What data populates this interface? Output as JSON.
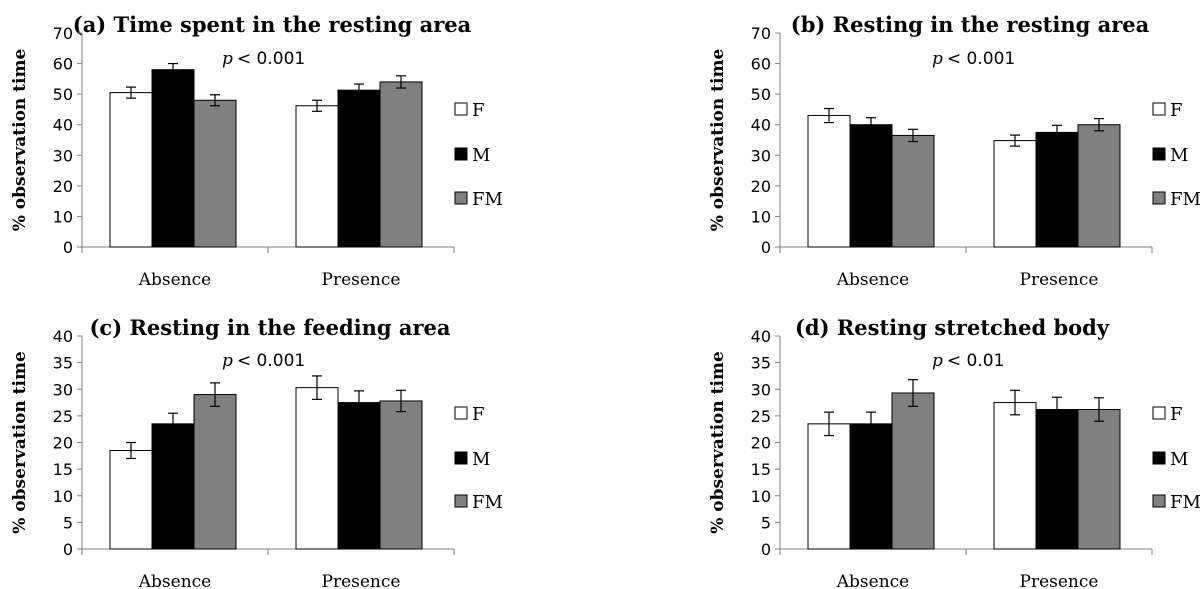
{
  "chart_data": [
    {
      "type": "bar",
      "title": "(a) Time spent in the resting area",
      "annotation": {
        "p_label": "p",
        "p_value": "< 0.001"
      },
      "ylabel": "% observation time",
      "ylim": [
        0,
        70
      ],
      "yticks": [
        "0",
        "10",
        "20",
        "30",
        "40",
        "50",
        "60",
        "70"
      ],
      "categories": [
        "Absence",
        "Presence"
      ],
      "series": [
        {
          "name": "F",
          "color": "#ffffff",
          "values": [
            50.5,
            46.2
          ],
          "errors": [
            1.8,
            1.8
          ]
        },
        {
          "name": "M",
          "color": "#000000",
          "values": [
            58.0,
            51.3
          ],
          "errors": [
            2.0,
            2.0
          ]
        },
        {
          "name": "FM",
          "color": "#808080",
          "values": [
            48.0,
            54.0
          ],
          "errors": [
            1.8,
            2.0
          ]
        }
      ],
      "legend_position": "right"
    },
    {
      "type": "bar",
      "title": "(b) Resting in the resting area",
      "annotation": {
        "p_label": "p",
        "p_value": "< 0.001"
      },
      "ylabel": "% observation time",
      "ylim": [
        0,
        70
      ],
      "yticks": [
        "0",
        "10",
        "20",
        "30",
        "40",
        "50",
        "60",
        "70"
      ],
      "categories": [
        "Absence",
        "Presence"
      ],
      "series": [
        {
          "name": "F",
          "color": "#ffffff",
          "values": [
            43.0,
            34.8
          ],
          "errors": [
            2.3,
            1.8
          ]
        },
        {
          "name": "M",
          "color": "#000000",
          "values": [
            40.0,
            37.5
          ],
          "errors": [
            2.3,
            2.3
          ]
        },
        {
          "name": "FM",
          "color": "#808080",
          "values": [
            36.5,
            40.0
          ],
          "errors": [
            2.0,
            2.0
          ]
        }
      ],
      "legend_position": "right"
    },
    {
      "type": "bar",
      "title": "(c) Resting in the feeding area",
      "annotation": {
        "p_label": "p",
        "p_value": "< 0.001"
      },
      "ylabel": "% observation time",
      "ylim": [
        0,
        40
      ],
      "yticks": [
        "0",
        "5",
        "10",
        "15",
        "20",
        "25",
        "30",
        "35",
        "40"
      ],
      "categories": [
        "Absence",
        "Presence"
      ],
      "series": [
        {
          "name": "F",
          "color": "#ffffff",
          "values": [
            18.5,
            30.3
          ],
          "errors": [
            1.5,
            2.2
          ]
        },
        {
          "name": "M",
          "color": "#000000",
          "values": [
            23.5,
            27.5
          ],
          "errors": [
            2.0,
            2.2
          ]
        },
        {
          "name": "FM",
          "color": "#808080",
          "values": [
            29.0,
            27.8
          ],
          "errors": [
            2.2,
            2.0
          ]
        }
      ],
      "legend_position": "right"
    },
    {
      "type": "bar",
      "title": "(d) Resting stretched body",
      "annotation": {
        "p_label": "p",
        "p_value": "< 0.01"
      },
      "ylabel": "% observation time",
      "ylim": [
        0,
        40
      ],
      "yticks": [
        "0",
        "5",
        "10",
        "15",
        "20",
        "25",
        "30",
        "35",
        "40"
      ],
      "categories": [
        "Absence",
        "Presence"
      ],
      "series": [
        {
          "name": "F",
          "color": "#ffffff",
          "values": [
            23.5,
            27.5
          ],
          "errors": [
            2.2,
            2.3
          ]
        },
        {
          "name": "M",
          "color": "#000000",
          "values": [
            23.5,
            26.2
          ],
          "errors": [
            2.2,
            2.3
          ]
        },
        {
          "name": "FM",
          "color": "#808080",
          "values": [
            29.3,
            26.2
          ],
          "errors": [
            2.5,
            2.2
          ]
        }
      ],
      "legend_position": "right"
    }
  ]
}
